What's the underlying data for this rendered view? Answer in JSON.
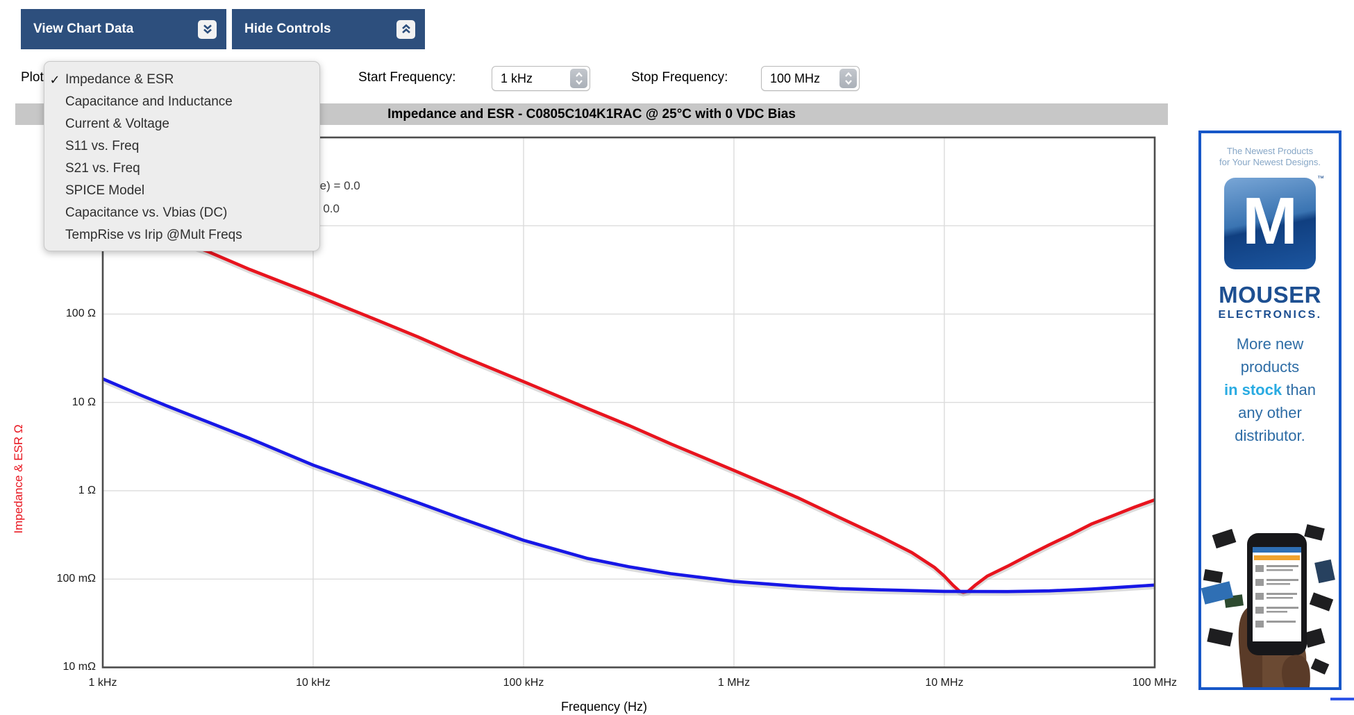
{
  "toolbar": {
    "view_chart_data_label": "View Chart Data",
    "hide_controls_label": "Hide Controls"
  },
  "controls": {
    "plot_label": "Plot:",
    "start_frequency_label": "Start Frequency:",
    "start_frequency_value": "1 kHz",
    "stop_frequency_label": "Stop Frequency:",
    "stop_frequency_value": "100 MHz"
  },
  "plot_menu": {
    "check_glyph": "✓",
    "items": [
      {
        "label": "Impedance & ESR",
        "checked": true
      },
      {
        "label": "Capacitance and Inductance",
        "checked": false
      },
      {
        "label": "Current & Voltage",
        "checked": false
      },
      {
        "label": "S11 vs. Freq",
        "checked": false
      },
      {
        "label": "S21 vs. Freq",
        "checked": false
      },
      {
        "label": "SPICE Model",
        "checked": false
      },
      {
        "label": "Capacitance vs. Vbias (DC)",
        "checked": false
      },
      {
        "label": "TempRise vs Irip @Mult Freqs",
        "checked": false
      }
    ]
  },
  "chart": {
    "title": "Impedance and ESR - C0805C104K1RAC @ 25°C with 0 VDC Bias",
    "legend_line1": "ESL (Equivalent Series Inductance) = 0.0",
    "legend_line2": "ESR = 0.0",
    "x_axis_title": "Frequency (Hz)",
    "y_axis_title": "Impedance & ESR Ω"
  },
  "chart_data": {
    "type": "line",
    "title": "Impedance and ESR - C0805C104K1RAC @ 25°C with 0 VDC Bias",
    "xlabel": "Frequency (Hz)",
    "ylabel": "Impedance & ESR Ω",
    "x_scale": "log",
    "y_scale": "log",
    "grid": true,
    "x_range_khz": [
      1,
      100000
    ],
    "y_range_ohms": [
      0.01,
      10000
    ],
    "x_ticks": [
      {
        "khz": 1,
        "label": "1 kHz"
      },
      {
        "khz": 10,
        "label": "10 kHz"
      },
      {
        "khz": 100,
        "label": "100 kHz"
      },
      {
        "khz": 1000,
        "label": "1 MHz"
      },
      {
        "khz": 10000,
        "label": "10 MHz"
      },
      {
        "khz": 100000,
        "label": "100 MHz"
      }
    ],
    "y_ticks": [
      {
        "ohms": 100,
        "label": "100 Ω"
      },
      {
        "ohms": 10,
        "label": "10 Ω"
      },
      {
        "ohms": 1,
        "label": "1 Ω"
      },
      {
        "ohms": 0.1,
        "label": "100 mΩ"
      },
      {
        "ohms": 0.01,
        "label": "10 mΩ"
      }
    ],
    "grid_x_khz": [
      10,
      100,
      1000,
      10000
    ],
    "grid_y_ohms": [
      1000,
      100,
      10,
      1,
      0.1
    ],
    "series": [
      {
        "name": "Impedance",
        "color": "#e8141e",
        "points_khz_ohms": [
          [
            1,
            1600
          ],
          [
            2,
            760
          ],
          [
            3.16,
            510
          ],
          [
            5,
            320
          ],
          [
            10,
            168
          ],
          [
            20,
            86
          ],
          [
            31.6,
            55
          ],
          [
            50,
            34
          ],
          [
            100,
            17.2
          ],
          [
            200,
            8.6
          ],
          [
            316,
            5.5
          ],
          [
            500,
            3.4
          ],
          [
            1000,
            1.7
          ],
          [
            2000,
            0.84
          ],
          [
            3160,
            0.5
          ],
          [
            5000,
            0.3
          ],
          [
            7000,
            0.2
          ],
          [
            9000,
            0.135
          ],
          [
            10000,
            0.108
          ],
          [
            11000,
            0.085
          ],
          [
            11800,
            0.073
          ],
          [
            12300,
            0.0705
          ],
          [
            13000,
            0.073
          ],
          [
            14000,
            0.085
          ],
          [
            16000,
            0.108
          ],
          [
            20000,
            0.14
          ],
          [
            25000,
            0.185
          ],
          [
            31600,
            0.245
          ],
          [
            40000,
            0.32
          ],
          [
            50000,
            0.42
          ],
          [
            63000,
            0.52
          ],
          [
            80000,
            0.65
          ],
          [
            100000,
            0.79
          ]
        ]
      },
      {
        "name": "ESR",
        "color": "#1717e6",
        "points_khz_ohms": [
          [
            1,
            18.5
          ],
          [
            1.5,
            12.2
          ],
          [
            2,
            9.2
          ],
          [
            3.16,
            6.0
          ],
          [
            5,
            3.9
          ],
          [
            10,
            1.95
          ],
          [
            20,
            1.08
          ],
          [
            31.6,
            0.73
          ],
          [
            50,
            0.49
          ],
          [
            100,
            0.275
          ],
          [
            200,
            0.172
          ],
          [
            316,
            0.138
          ],
          [
            500,
            0.115
          ],
          [
            1000,
            0.094
          ],
          [
            2000,
            0.083
          ],
          [
            3160,
            0.078
          ],
          [
            5000,
            0.0755
          ],
          [
            10000,
            0.0725
          ],
          [
            20000,
            0.0722
          ],
          [
            31600,
            0.0735
          ],
          [
            50000,
            0.077
          ],
          [
            70000,
            0.081
          ],
          [
            100000,
            0.0855
          ]
        ]
      }
    ]
  },
  "ad": {
    "headline_line1": "The Newest Products",
    "headline_line2": "for Your Newest Designs.",
    "logo_letter": "M",
    "logo_tm": "™",
    "brand": "MOUSER",
    "brand_sub": "ELECTRONICS.",
    "tagline_lines": [
      {
        "t": "More new"
      },
      {
        "t": "products"
      },
      {
        "h": "in stock",
        "t": " than"
      },
      {
        "t": "any other"
      },
      {
        "t": "distributor."
      }
    ],
    "accent_blue": "#1757c8",
    "brand_blue": "#1d4f91",
    "highlight_blue": "#29abe2"
  },
  "colors": {
    "button_bg": "#2d4f7d",
    "title_bar_bg": "#c7c7c7",
    "menu_bg": "#ededed",
    "grid": "#dcdcdc",
    "frame": "#4c4c4c",
    "impedance_red": "#e8141e",
    "esr_blue": "#1717e6",
    "y_title_red": "#e8141e"
  }
}
